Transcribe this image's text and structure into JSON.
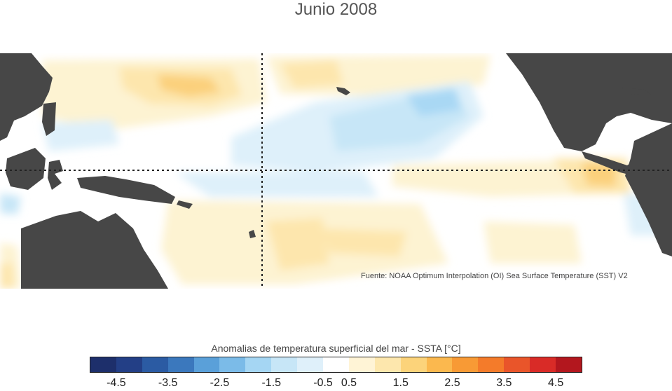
{
  "title": "Junio 2008",
  "source": "Fuente: NOAA Optimum Interpolation (OI) Sea Surface Temperature (SST) V2",
  "legend": {
    "title": "Anomalias de temperatura superficial del mar - SSTA  [°C]",
    "unit": "°C",
    "ticks": [
      "-4.5",
      "-3.5",
      "-2.5",
      "-1.5",
      "-0.5",
      "0.5",
      "1.5",
      "2.5",
      "3.5",
      "4.5"
    ],
    "colors": [
      "#1d2f6b",
      "#233f86",
      "#2b5ba3",
      "#3b78bd",
      "#5aa0d9",
      "#7bbbe8",
      "#a5d6f3",
      "#c7e6f7",
      "#dff0fa",
      "#ffffff",
      "#fff4d6",
      "#fde7ad",
      "#fcd37a",
      "#fbb84e",
      "#f89a35",
      "#f47b2a",
      "#e9552a",
      "#d92b27",
      "#b3171e"
    ],
    "bin_edges": [
      -5,
      -4.5,
      -4,
      -3.5,
      -3,
      -2.5,
      -2,
      -1.5,
      -1,
      -0.5,
      0.5,
      1,
      1.5,
      2,
      2.5,
      3,
      3.5,
      4,
      4.5,
      5
    ]
  },
  "map": {
    "land_color": "#474747",
    "reference_lines": [
      "equator",
      "dateline"
    ]
  },
  "chart_data": {
    "type": "heatmap",
    "title": "Junio 2008",
    "variable": "SSTA",
    "unit": "°C",
    "colorbar_ticks": [
      -4.5,
      -3.5,
      -2.5,
      -1.5,
      -0.5,
      0.5,
      1.5,
      2.5,
      3.5,
      4.5
    ],
    "anomaly_regions": [
      {
        "region": "north-west Pacific",
        "value": 1.3
      },
      {
        "region": "central-north Pacific",
        "value": 1.0
      },
      {
        "region": "north-east Pacific",
        "value": -0.8
      },
      {
        "region": "central equatorial Pacific",
        "value": -0.5
      },
      {
        "region": "eastern equatorial Pacific near Ecuador",
        "value": 2.0
      },
      {
        "region": "south-central Pacific",
        "value": 0.6
      }
    ]
  }
}
